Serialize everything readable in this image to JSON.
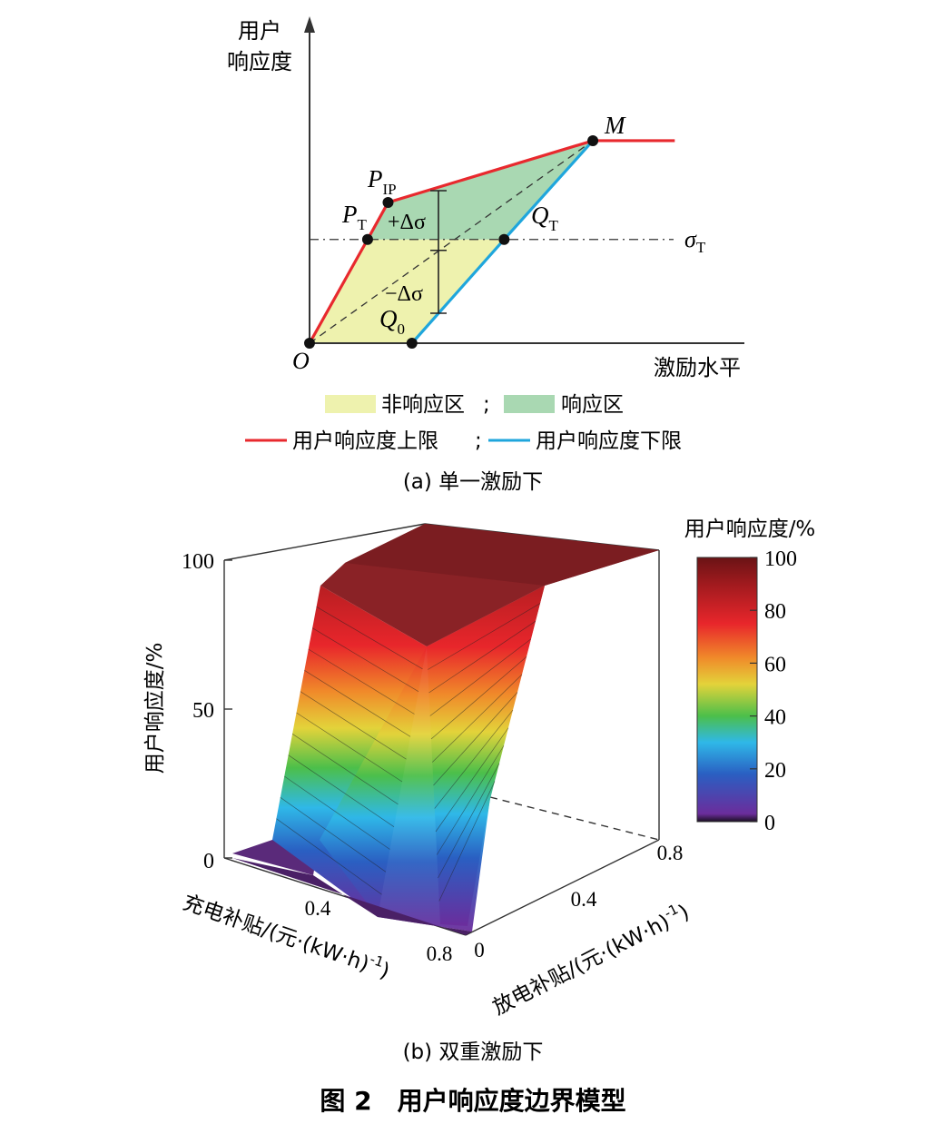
{
  "figure": {
    "caption": "图 2　用户响应度边界模型"
  },
  "chart_data": [
    {
      "type": "line",
      "panel_caption": "(a) 单一激励下",
      "ylabel_lines": [
        "用户",
        "响应度"
      ],
      "xlabel": "激励水平",
      "origin_label": "O",
      "points": {
        "O": {
          "label": "O",
          "x": 0.0,
          "y": 0.0
        },
        "Q0": {
          "label": "Q",
          "sub": "0",
          "x": 0.3,
          "y": 0.0
        },
        "PT": {
          "label": "P",
          "sub": "T",
          "x": 0.17,
          "y": 0.42
        },
        "PIP": {
          "label": "P",
          "sub": "IP",
          "x": 0.23,
          "y": 0.57
        },
        "QT": {
          "label": "Q",
          "sub": "T",
          "x": 0.57,
          "y": 0.42
        },
        "M": {
          "label": "M",
          "x": 0.83,
          "y": 0.82
        }
      },
      "series": [
        {
          "name": "用户响应度上限",
          "color": "#e8292e",
          "x": [
            0.0,
            0.17,
            0.23,
            0.83,
            1.07
          ],
          "y": [
            0.0,
            0.42,
            0.57,
            0.82,
            0.82
          ]
        },
        {
          "name": "用户响应度下限",
          "color": "#1fa6dc",
          "x": [
            0.3,
            0.57,
            0.83
          ],
          "y": [
            0.0,
            0.42,
            0.82
          ]
        }
      ],
      "threshold": {
        "label": "σ",
        "sub": "T",
        "y": 0.42
      },
      "delta_plus": "+Δσ",
      "delta_minus": "−Δσ",
      "regions": [
        {
          "name": "非响应区",
          "color": "#eef2ae"
        },
        {
          "name": "响应区",
          "color": "#a9d8b2"
        }
      ],
      "legend_sep": ";"
    },
    {
      "type": "surface",
      "panel_caption": "(b) 双重激励下",
      "zlabel": "用户响应度/%",
      "xlabel": "充电补贴/(元·(kW·h)",
      "xlabel_sup": "-1",
      "xlabel_close": ")",
      "ylabel": "放电补贴/(元·(kW·h)",
      "ylabel_sup": "-1",
      "ylabel_close": ")",
      "z_ticks": [
        "0",
        "50",
        "100"
      ],
      "x_ticks": [
        "0.4",
        "0.8"
      ],
      "y_ticks": [
        "0",
        "0.4",
        "0.8"
      ],
      "zlim": [
        0,
        100
      ],
      "surface_levels": [
        0,
        100
      ],
      "colorbar": {
        "title": "用户响应度/%",
        "ticks": [
          "0",
          "20",
          "40",
          "60",
          "80",
          "100"
        ],
        "colors": [
          "#1a0f20",
          "#6b2d9c",
          "#2a5fc2",
          "#2fb8e8",
          "#4cbf4a",
          "#e3d33a",
          "#f08a2a",
          "#e8262b",
          "#a01a1e",
          "#6a1315"
        ]
      }
    }
  ]
}
